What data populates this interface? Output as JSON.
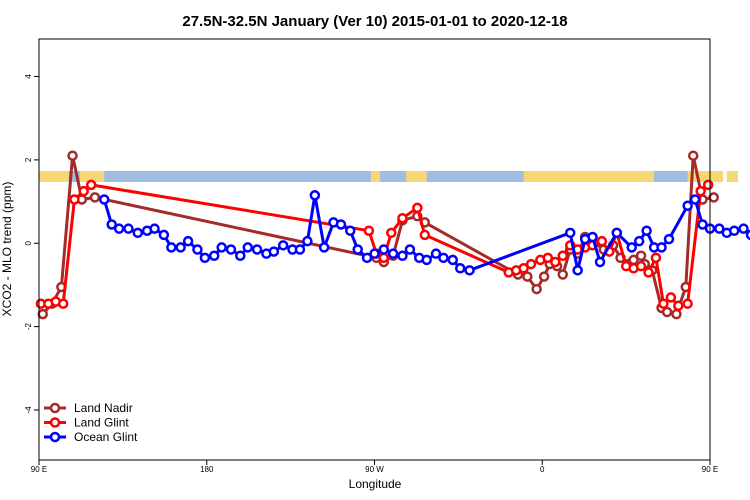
{
  "chart_data": {
    "type": "line",
    "title": "27.5N-32.5N January (Ver 10)   2015-01-01 to 2020-12-18",
    "xlabel": "Longitude",
    "ylabel": "XCO2 - MLO trend (ppm)",
    "xlim": [
      90,
      450
    ],
    "ylim": [
      -5.2,
      4.9
    ],
    "x_ticks": [
      {
        "value": 90,
        "label": "90 E"
      },
      {
        "value": 180,
        "label": "180"
      },
      {
        "value": 270,
        "label": "90 W"
      },
      {
        "value": 360,
        "label": "0"
      },
      {
        "value": 450,
        "label": "90 E"
      },
      {
        "value": 540,
        "label": "180"
      }
    ],
    "y_ticks": [
      {
        "value": -4,
        "label": "-4"
      },
      {
        "value": -2,
        "label": "-2"
      },
      {
        "value": 0,
        "label": "0"
      },
      {
        "value": 2,
        "label": "2"
      },
      {
        "value": 4,
        "label": "4"
      }
    ],
    "legend_position": "bottom-left",
    "land_mask_colors": {
      "land": "#f7d774",
      "ocean": "#9fbde0"
    },
    "series": [
      {
        "name": "Land Nadir",
        "color": "#a52a2a",
        "points": [
          [
            92,
            -1.7
          ],
          [
            97,
            -1.45
          ],
          [
            102,
            -1.05
          ],
          [
            108,
            2.1
          ],
          [
            113,
            1.05
          ],
          [
            120,
            1.1
          ],
          [
            271,
            -0.35
          ],
          [
            275,
            -0.45
          ],
          [
            280,
            -0.3
          ],
          [
            285,
            0.55
          ],
          [
            293,
            0.65
          ],
          [
            297,
            0.5
          ],
          [
            347,
            -0.75
          ],
          [
            352,
            -0.8
          ],
          [
            357,
            -1.1
          ],
          [
            361,
            -0.8
          ],
          [
            364,
            -0.5
          ],
          [
            368,
            -0.55
          ],
          [
            371,
            -0.75
          ],
          [
            375,
            -0.15
          ],
          [
            379,
            -0.25
          ],
          [
            383,
            0.15
          ],
          [
            387,
            0.05
          ],
          [
            393,
            -0.15
          ],
          [
            398,
            -0.05
          ],
          [
            402,
            -0.35
          ],
          [
            406,
            -0.5
          ],
          [
            409,
            -0.4
          ],
          [
            413,
            -0.3
          ],
          [
            415,
            -0.5
          ],
          [
            419,
            -0.65
          ],
          [
            424,
            -1.55
          ],
          [
            427,
            -1.65
          ],
          [
            432,
            -1.7
          ],
          [
            437,
            -1.05
          ],
          [
            441,
            2.1
          ],
          [
            446,
            1.05
          ],
          [
            452,
            1.1
          ]
        ]
      },
      {
        "name": "Land Glint",
        "color": "#ff0000",
        "points": [
          [
            91,
            -1.45
          ],
          [
            95,
            -1.45
          ],
          [
            99,
            -1.4
          ],
          [
            103,
            -1.45
          ],
          [
            109,
            1.05
          ],
          [
            114,
            1.25
          ],
          [
            118,
            1.4
          ],
          [
            267,
            0.3
          ],
          [
            271,
            -0.25
          ],
          [
            275,
            -0.35
          ],
          [
            279,
            0.25
          ],
          [
            285,
            0.6
          ],
          [
            293,
            0.85
          ],
          [
            297,
            0.2
          ],
          [
            342,
            -0.7
          ],
          [
            346,
            -0.65
          ],
          [
            350,
            -0.6
          ],
          [
            354,
            -0.5
          ],
          [
            359,
            -0.4
          ],
          [
            363,
            -0.35
          ],
          [
            367,
            -0.45
          ],
          [
            371,
            -0.3
          ],
          [
            375,
            -0.05
          ],
          [
            379,
            -0.15
          ],
          [
            383,
            -0.1
          ],
          [
            387,
            -0.05
          ],
          [
            392,
            0.05
          ],
          [
            396,
            -0.2
          ],
          [
            400,
            0.25
          ],
          [
            405,
            -0.55
          ],
          [
            409,
            -0.6
          ],
          [
            413,
            -0.55
          ],
          [
            417,
            -0.7
          ],
          [
            421,
            -0.35
          ],
          [
            425,
            -1.45
          ],
          [
            429,
            -1.3
          ],
          [
            433,
            -1.5
          ],
          [
            438,
            -1.45
          ],
          [
            445,
            1.25
          ],
          [
            449,
            1.4
          ]
        ]
      },
      {
        "name": "Ocean Glint",
        "color": "#0000ff",
        "points": [
          [
            125,
            1.05
          ],
          [
            129,
            0.45
          ],
          [
            133,
            0.35
          ],
          [
            138,
            0.35
          ],
          [
            143,
            0.25
          ],
          [
            148,
            0.3
          ],
          [
            152,
            0.35
          ],
          [
            157,
            0.2
          ],
          [
            161,
            -0.1
          ],
          [
            166,
            -0.1
          ],
          [
            170,
            0.05
          ],
          [
            175,
            -0.15
          ],
          [
            179,
            -0.35
          ],
          [
            184,
            -0.3
          ],
          [
            188,
            -0.1
          ],
          [
            193,
            -0.15
          ],
          [
            198,
            -0.3
          ],
          [
            202,
            -0.1
          ],
          [
            207,
            -0.15
          ],
          [
            212,
            -0.25
          ],
          [
            216,
            -0.2
          ],
          [
            221,
            -0.05
          ],
          [
            226,
            -0.15
          ],
          [
            230,
            -0.15
          ],
          [
            234,
            0.05
          ],
          [
            238,
            1.15
          ],
          [
            243,
            -0.1
          ],
          [
            248,
            0.5
          ],
          [
            252,
            0.45
          ],
          [
            257,
            0.3
          ],
          [
            261,
            -0.15
          ],
          [
            266,
            -0.35
          ],
          [
            270,
            -0.25
          ],
          [
            275,
            -0.15
          ],
          [
            280,
            -0.25
          ],
          [
            285,
            -0.3
          ],
          [
            289,
            -0.15
          ],
          [
            294,
            -0.35
          ],
          [
            298,
            -0.4
          ],
          [
            303,
            -0.25
          ],
          [
            307,
            -0.35
          ],
          [
            312,
            -0.4
          ],
          [
            316,
            -0.6
          ],
          [
            321,
            -0.65
          ],
          [
            375,
            0.25
          ],
          [
            379,
            -0.65
          ],
          [
            383,
            0.1
          ],
          [
            387,
            0.15
          ],
          [
            391,
            -0.45
          ],
          [
            400,
            0.25
          ],
          [
            408,
            -0.1
          ],
          [
            412,
            0.05
          ],
          [
            416,
            0.3
          ],
          [
            420,
            -0.1
          ],
          [
            424,
            -0.1
          ],
          [
            428,
            0.1
          ],
          [
            438,
            0.9
          ],
          [
            442,
            1.05
          ],
          [
            446,
            0.45
          ],
          [
            450,
            0.35
          ],
          [
            455,
            0.35
          ],
          [
            459,
            0.25
          ],
          [
            463,
            0.3
          ],
          [
            468,
            0.35
          ],
          [
            472,
            0.2
          ],
          [
            477,
            -0.1
          ],
          [
            481,
            -0.1
          ],
          [
            486,
            0.05
          ]
        ]
      }
    ]
  }
}
